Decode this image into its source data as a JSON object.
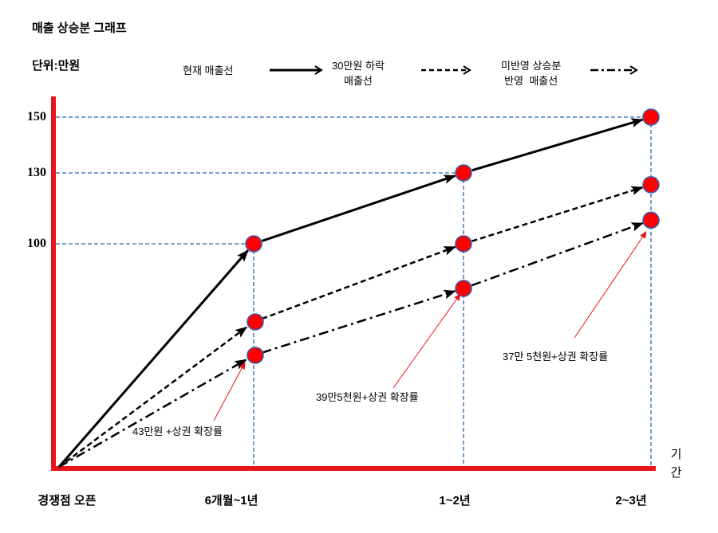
{
  "colors": {
    "axis": "#e8161b",
    "guide": "#4f81bd",
    "marker_fill": "#ff0000",
    "marker_edge": "#3d5fb0",
    "series_line": "#000000",
    "annotation": "#e8161b",
    "background": "#ffffff"
  },
  "chart_data": {
    "type": "line",
    "title": "매출 상승분 그래프",
    "ylabel": "단위:만원",
    "xlabel": "기간",
    "categories": [
      "경쟁점 오픈",
      "6개월~1년",
      "1~2년",
      "2~3년"
    ],
    "yticks": [
      150,
      130,
      100
    ],
    "ylim": [
      0,
      150
    ],
    "grid": false,
    "guide_lines": true,
    "legend_position": "top",
    "series": [
      {
        "name": "현재 매출선",
        "line_style": "solid",
        "values": [
          0,
          100,
          130,
          150
        ]
      },
      {
        "name": "30만원 하락\n매출선",
        "line_style": "dashed",
        "values": [
          0,
          65,
          100,
          125
        ]
      },
      {
        "name": "미반영 상승분\n반영  매출선",
        "line_style": "dash-dot",
        "values": [
          0,
          50,
          80,
          110
        ]
      }
    ],
    "annotations": [
      {
        "text": "43만원 +상권 확장률",
        "series_index": 2,
        "point_index": 1
      },
      {
        "text": "39만5천원+상권 확장률",
        "series_index": 2,
        "point_index": 2
      },
      {
        "text": "37만 5천원+상권 확장률",
        "series_index": 2,
        "point_index": 3
      }
    ]
  }
}
